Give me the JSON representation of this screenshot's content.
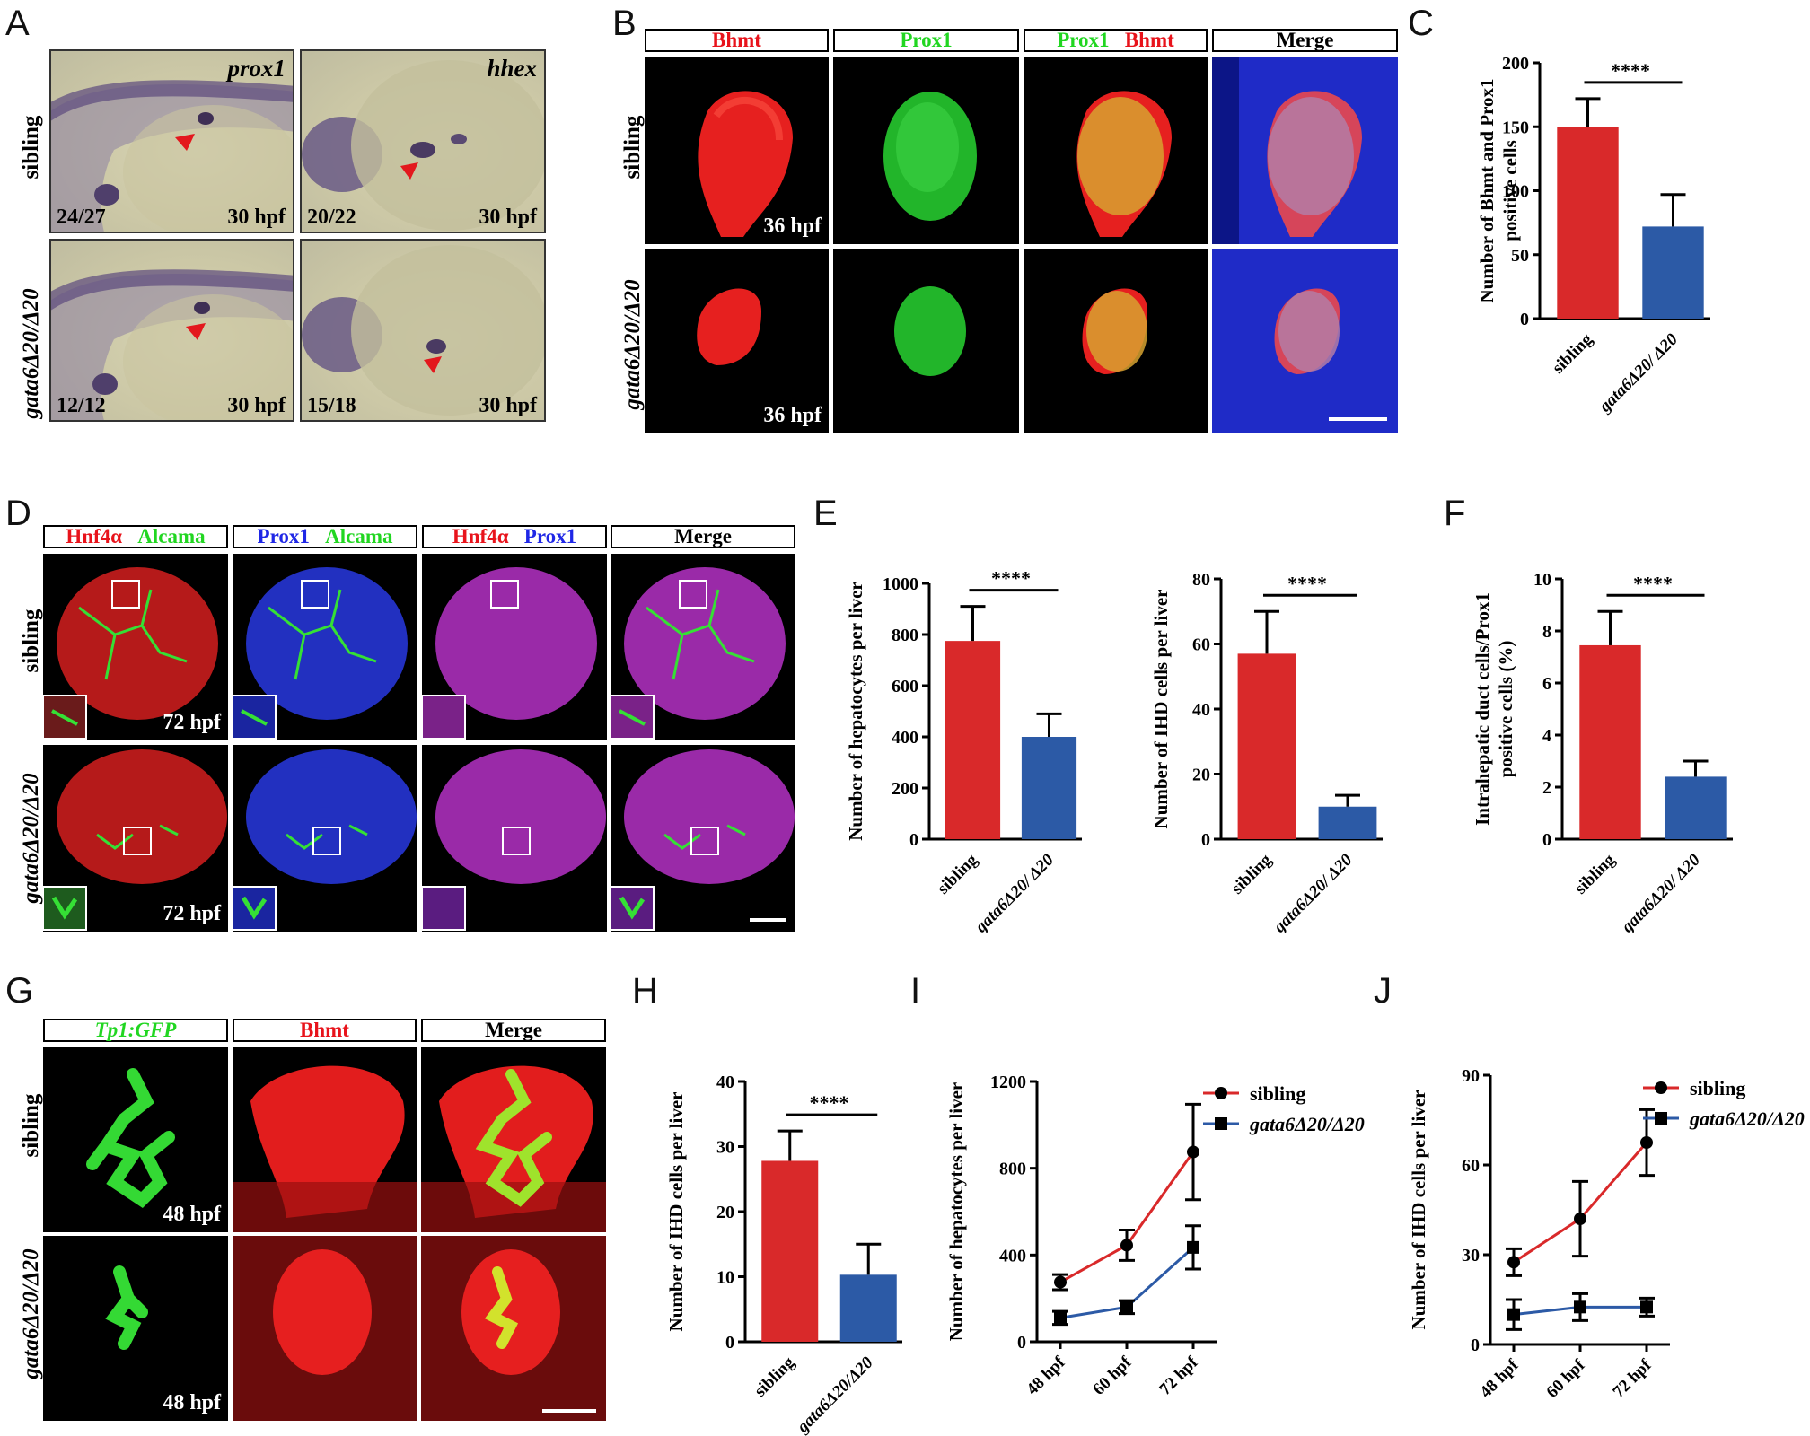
{
  "panels": {
    "A": {
      "label": "A",
      "genes": [
        "prox1",
        "hhex"
      ],
      "rows": [
        "sibling",
        "gata6Δ20/Δ20"
      ],
      "counts": [
        [
          "24/27",
          "20/22"
        ],
        [
          "12/12",
          "15/18"
        ]
      ],
      "stage": "30 hpf"
    },
    "B": {
      "label": "B",
      "headers": {
        "bhmt": "Bhmt",
        "prox1": "Prox1",
        "merge": "Merge"
      },
      "rows": [
        "sibling",
        "gata6Δ20/Δ20"
      ],
      "stage": "36 hpf"
    },
    "C": {
      "label": "C"
    },
    "D": {
      "label": "D",
      "headers": {
        "hnf4a": "Hnf4α",
        "alcama": "Alcama",
        "prox1": "Prox1",
        "merge": "Merge"
      },
      "rows": [
        "sibling",
        "gata6Δ20/Δ20"
      ],
      "stage": "72 hpf"
    },
    "E": {
      "label": "E"
    },
    "F": {
      "label": "F"
    },
    "G": {
      "label": "G",
      "headers": {
        "tp1": "Tp1:GFP",
        "bhmt": "Bhmt",
        "merge": "Merge"
      },
      "rows": [
        "sibling",
        "gata6Δ20/Δ20"
      ],
      "stage": "48 hpf"
    },
    "H": {
      "label": "H"
    },
    "I": {
      "label": "I"
    },
    "J": {
      "label": "J"
    }
  },
  "colors": {
    "sibling": "#d9292a",
    "mutant": "#2c5aa6",
    "red_text": "#e8131b",
    "green_text": "#21d621",
    "blue_text": "#1f27e6"
  },
  "chart_data": [
    {
      "id": "C",
      "type": "bar",
      "categories": [
        "sibling",
        "gata6Δ20/ Δ20"
      ],
      "values": [
        150,
        72
      ],
      "errors": [
        22,
        25
      ],
      "ylabel": "Number of Bhmt and Prox1 positive cells",
      "ylim": [
        0,
        200
      ],
      "yticks": [
        0,
        50,
        100,
        150,
        200
      ],
      "significance": "****"
    },
    {
      "id": "E1",
      "type": "bar",
      "categories": [
        "sibling",
        "gata6Δ20/ Δ20"
      ],
      "values": [
        775,
        400
      ],
      "errors": [
        135,
        90
      ],
      "ylabel": "Number of hepatocytes per liver",
      "ylim": [
        0,
        1000
      ],
      "yticks": [
        0,
        200,
        400,
        600,
        800,
        1000
      ],
      "significance": "****"
    },
    {
      "id": "E2",
      "type": "bar",
      "categories": [
        "sibling",
        "gata6Δ20/ Δ20"
      ],
      "values": [
        57,
        10
      ],
      "errors": [
        13,
        3.5
      ],
      "ylabel": "Number of IHD cells per liver",
      "ylim": [
        0,
        80
      ],
      "yticks": [
        0,
        20,
        40,
        60,
        80
      ],
      "significance": "****"
    },
    {
      "id": "F",
      "type": "bar",
      "categories": [
        "sibling",
        "gata6Δ20/ Δ20"
      ],
      "values": [
        7.45,
        2.4
      ],
      "errors": [
        1.3,
        0.6
      ],
      "ylabel": "Intrahepatic duct cells/Prox1 positive cells (%)",
      "ylim": [
        0,
        10
      ],
      "yticks": [
        0,
        2,
        4,
        6,
        8,
        10
      ],
      "significance": "****"
    },
    {
      "id": "H",
      "type": "bar",
      "categories": [
        "sibling",
        "gata6Δ20/Δ20"
      ],
      "values": [
        27.8,
        10.3
      ],
      "errors": [
        4.6,
        4.7
      ],
      "ylabel": "Number of IHD cells per liver",
      "ylim": [
        0,
        40
      ],
      "yticks": [
        0,
        10,
        20,
        30,
        40
      ],
      "significance": "****"
    },
    {
      "id": "I",
      "type": "line",
      "x": [
        "48 hpf",
        "60 hpf",
        "72 hpf"
      ],
      "series": [
        {
          "name": "sibling",
          "values": [
            275,
            445,
            875
          ],
          "errors": [
            35,
            70,
            220
          ]
        },
        {
          "name": "gata6Δ20/Δ20",
          "values": [
            110,
            160,
            435
          ],
          "errors": [
            30,
            30,
            100
          ]
        }
      ],
      "ylabel": "Number of hepatocytes per liver",
      "ylim": [
        0,
        1200
      ],
      "yticks": [
        0,
        400,
        800,
        1200
      ],
      "legend": "top-right"
    },
    {
      "id": "J",
      "type": "line",
      "x": [
        "48 hpf",
        "60 hpf",
        "72 hpf"
      ],
      "series": [
        {
          "name": "sibling",
          "values": [
            27.5,
            42,
            67.5
          ],
          "errors": [
            4.5,
            12.5,
            11
          ]
        },
        {
          "name": "gata6Δ20/Δ20",
          "values": [
            10,
            12.5,
            12.5
          ],
          "errors": [
            5,
            4.5,
            3
          ]
        }
      ],
      "ylabel": "Number of IHD cells per liver",
      "ylim": [
        0,
        90
      ],
      "yticks": [
        0,
        30,
        60,
        90
      ],
      "legend": "top-right"
    }
  ]
}
